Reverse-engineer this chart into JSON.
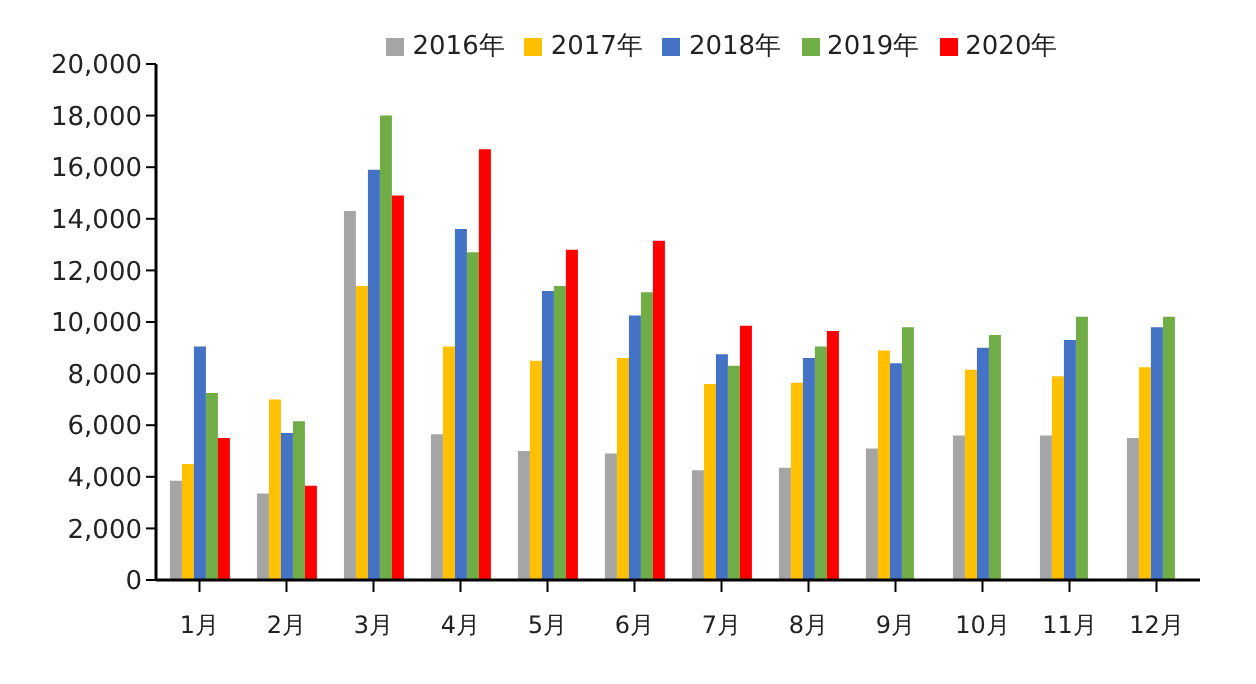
{
  "chart_data": {
    "type": "bar",
    "categories": [
      "1月",
      "2月",
      "3月",
      "4月",
      "5月",
      "6月",
      "7月",
      "8月",
      "9月",
      "10月",
      "11月",
      "12月"
    ],
    "series": [
      {
        "name": "2016年",
        "color": "#a5a5a5",
        "values": [
          3850,
          3350,
          14300,
          5650,
          5000,
          4900,
          4250,
          4350,
          5100,
          5600,
          5600,
          5500
        ]
      },
      {
        "name": "2017年",
        "color": "#ffc000",
        "values": [
          4500,
          7000,
          11400,
          9050,
          8500,
          8600,
          7600,
          7650,
          8900,
          8150,
          7900,
          8250
        ]
      },
      {
        "name": "2018年",
        "color": "#4472c4",
        "values": [
          9050,
          5700,
          15900,
          13600,
          11200,
          10250,
          8750,
          8600,
          8400,
          9000,
          9300,
          9800
        ]
      },
      {
        "name": "2019年",
        "color": "#70ad47",
        "values": [
          7250,
          6150,
          18000,
          12700,
          11400,
          11150,
          8300,
          9050,
          9800,
          9500,
          10200,
          10200
        ]
      },
      {
        "name": "2020年",
        "color": "#ff0000",
        "values": [
          5500,
          3650,
          14900,
          16700,
          12800,
          13150,
          9850,
          9650,
          null,
          null,
          null,
          null
        ]
      }
    ],
    "ylim": [
      0,
      20000
    ],
    "yticks": [
      0,
      {
        "value": 2000,
        "label": "2,000"
      },
      {
        "value": 4000,
        "label": "4,000"
      },
      {
        "value": 6000,
        "label": "6,000"
      },
      {
        "value": 8000,
        "label": "8,000"
      },
      {
        "value": 10000,
        "label": "10,000"
      },
      {
        "value": 12000,
        "label": "12,000"
      },
      {
        "value": 14000,
        "label": "14,000"
      },
      {
        "value": 16000,
        "label": "16,000"
      },
      {
        "value": 18000,
        "label": "18,000"
      },
      {
        "value": 20000,
        "label": "20,000"
      }
    ],
    "grid": false,
    "legend": "top"
  }
}
